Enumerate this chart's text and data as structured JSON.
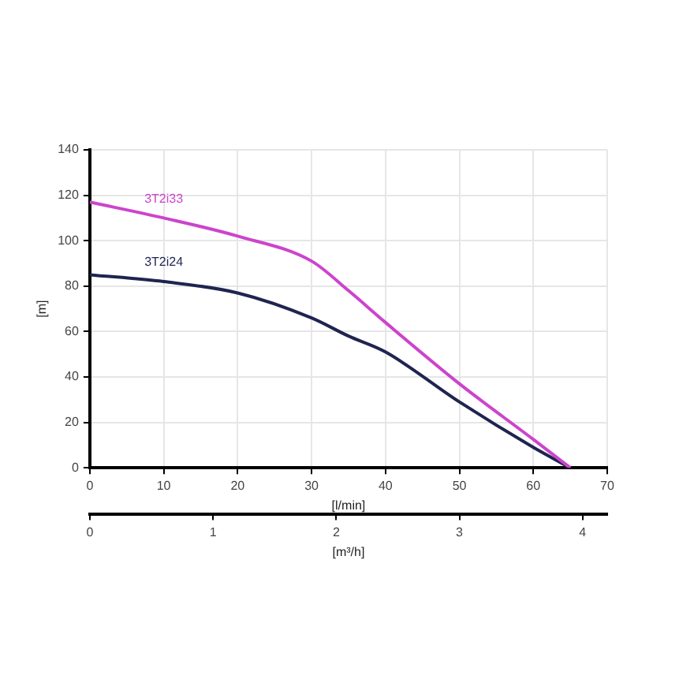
{
  "chart_data": {
    "type": "line",
    "xlabel": "[l/min]",
    "ylabel": "[m]",
    "x2label": "[m³/h]",
    "xlim": [
      0,
      70
    ],
    "xticks": [
      0,
      10,
      20,
      30,
      40,
      50,
      60,
      70
    ],
    "x2lim": [
      0,
      4.2
    ],
    "x2ticks": [
      0,
      1,
      2,
      3,
      4
    ],
    "ylim": [
      0,
      140
    ],
    "yticks": [
      0,
      20,
      40,
      60,
      80,
      100,
      120,
      140
    ],
    "grid": true,
    "legend": false,
    "marker": "none",
    "line_style": "solid",
    "series": [
      {
        "name": "3T2i33",
        "color": "#cc44cc",
        "x": [
          0,
          10,
          20,
          30,
          35,
          40,
          50,
          60,
          65
        ],
        "values": [
          117,
          110,
          102,
          91,
          78,
          64,
          37,
          12.5,
          0
        ]
      },
      {
        "name": "3T2i24",
        "color": "#1f2450",
        "x": [
          0,
          10,
          20,
          30,
          35,
          40,
          50,
          60,
          65
        ],
        "values": [
          85,
          82,
          77,
          66,
          58,
          51,
          29,
          9,
          0
        ]
      }
    ]
  }
}
